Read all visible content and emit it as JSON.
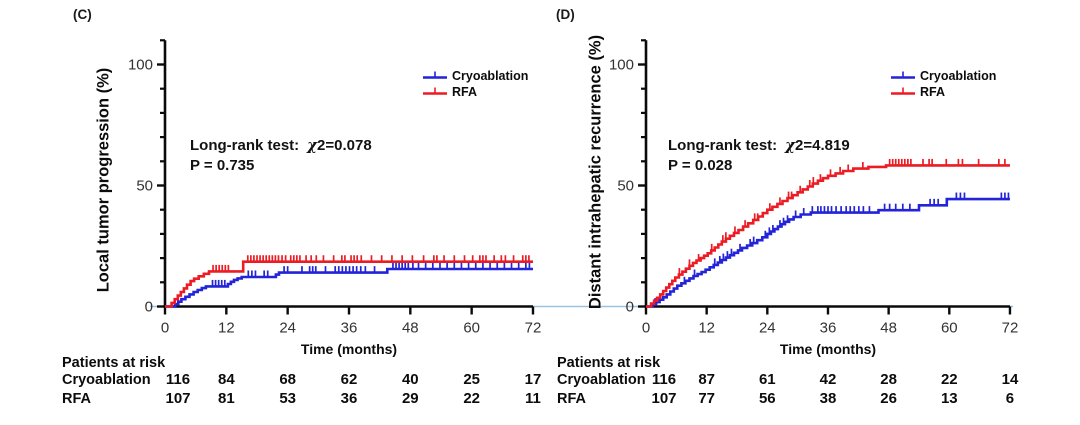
{
  "chart_data": [
    {
      "type": "line",
      "subtype": "cumulative-incidence-step-curves",
      "panel_label": "(C)",
      "ylabel": "Local tumor progression (%)",
      "xlabel": "Time (months)",
      "xlim": [
        0,
        72
      ],
      "ylim": [
        0,
        110
      ],
      "x_ticks": [
        0,
        12,
        24,
        36,
        48,
        60,
        72
      ],
      "y_ticks_major": [
        0,
        50,
        100
      ],
      "y_ticks_minor": [
        10,
        20,
        30,
        40,
        60,
        70,
        80,
        90,
        110
      ],
      "grid": false,
      "legend_position": "top-right",
      "annotation": {
        "prefix": "Long-rank test:",
        "chi": "χ",
        "chi_rest": "2=0.078",
        "p_line": "P = 0.735"
      },
      "series": [
        {
          "name": "Cryoablation",
          "color": "#2323d7",
          "steps": [
            [
              2,
              1
            ],
            [
              2.6,
              2
            ],
            [
              3.2,
              3
            ],
            [
              4,
              4
            ],
            [
              4.8,
              5
            ],
            [
              5.6,
              6
            ],
            [
              6.4,
              6.8
            ],
            [
              7.2,
              7.6
            ],
            [
              8,
              8.3
            ],
            [
              12.3,
              9.3
            ],
            [
              12.9,
              10.2
            ],
            [
              13.5,
              11
            ],
            [
              14.2,
              11.6
            ],
            [
              15,
              12.2
            ],
            [
              21.7,
              13.2
            ],
            [
              22.3,
              14
            ],
            [
              43.5,
              15.5
            ]
          ],
          "end_value": 15.5,
          "censors": [
            9.3,
            9.9,
            10.5,
            11.1,
            11.7,
            16.3,
            17,
            17.7,
            19.4,
            20.1,
            23.3,
            24,
            26.8,
            28.3,
            28.9,
            29.5,
            31.4,
            33.3,
            34,
            34.7,
            35.4,
            36.1,
            36.8,
            37.5,
            38.3,
            39.2,
            41,
            44.6,
            45.2,
            45.8,
            46.4,
            47,
            47.6,
            48.5,
            49.6,
            51,
            52.4,
            53.8,
            55.2,
            56.6,
            58,
            59.4,
            60.8,
            62.2,
            63.6,
            65,
            66.4,
            67.8,
            69.2,
            70.6,
            71.3
          ]
        },
        {
          "name": "RFA",
          "color": "#ec1c24",
          "steps": [
            [
              1.3,
              1.5
            ],
            [
              1.9,
              3
            ],
            [
              2.5,
              4.5
            ],
            [
              3.1,
              6
            ],
            [
              3.7,
              7.5
            ],
            [
              4.3,
              9
            ],
            [
              5,
              10.5
            ],
            [
              5.7,
              11.5
            ],
            [
              6.6,
              12.5
            ],
            [
              7.6,
              13.5
            ],
            [
              8.6,
              14.5
            ],
            [
              15.3,
              18.5
            ]
          ],
          "end_value": 18.5,
          "censors": [
            9.4,
            10,
            10.6,
            11.2,
            11.8,
            12.4,
            16.2,
            16.8,
            17.4,
            18,
            18.6,
            19.2,
            19.8,
            20.4,
            21,
            21.6,
            22.2,
            22.9,
            23.6,
            24.6,
            25.2,
            25.8,
            26.4,
            27.6,
            28.6,
            29.6,
            31,
            33,
            34.6,
            35.2,
            36.4,
            37,
            37.6,
            38.4,
            40.4,
            42.4,
            44.4,
            46.4,
            48.4,
            50.6,
            52.6,
            53.2,
            54.6,
            56.6,
            58.6,
            60.2,
            61.6,
            62.2,
            62.8,
            64.4,
            65.8,
            66.6,
            68.2,
            70,
            70.6,
            71.2
          ]
        }
      ],
      "risk_table": {
        "title": "Patients at risk",
        "rows": [
          {
            "name": "Cryoablation",
            "counts": [
              116,
              84,
              68,
              62,
              40,
              25,
              17
            ]
          },
          {
            "name": "RFA",
            "counts": [
              107,
              81,
              53,
              36,
              29,
              22,
              11
            ]
          }
        ]
      }
    },
    {
      "type": "line",
      "subtype": "cumulative-incidence-step-curves",
      "panel_label": "(D)",
      "ylabel": "Distant intrahepatic recurrence (%)",
      "xlabel": "Time (months)",
      "xlim": [
        0,
        72
      ],
      "ylim": [
        0,
        110
      ],
      "x_ticks": [
        0,
        12,
        24,
        36,
        48,
        60,
        72
      ],
      "y_ticks_major": [
        0,
        50,
        100
      ],
      "y_ticks_minor": [
        10,
        20,
        30,
        40,
        60,
        70,
        80,
        90,
        110
      ],
      "grid": false,
      "legend_position": "top-right",
      "annotation": {
        "prefix": "Long-rank test:",
        "chi": "χ",
        "chi_rest": "2=4.819",
        "p_line": "P = 0.028"
      },
      "series": [
        {
          "name": "Cryoablation",
          "color": "#2323d7",
          "steps": [
            [
              1.3,
              0.8
            ],
            [
              2,
              1.8
            ],
            [
              2.7,
              2.8
            ],
            [
              3.4,
              3.8
            ],
            [
              4.1,
              5
            ],
            [
              4.8,
              6.2
            ],
            [
              5.5,
              7.4
            ],
            [
              6.2,
              8.6
            ],
            [
              7,
              9.6
            ],
            [
              7.8,
              10.6
            ],
            [
              8.6,
              11.6
            ],
            [
              9.4,
              12.6
            ],
            [
              10.2,
              13.4
            ],
            [
              11,
              14.2
            ],
            [
              11.8,
              15.2
            ],
            [
              12.6,
              16.2
            ],
            [
              13.4,
              17.2
            ],
            [
              14.2,
              18.2
            ],
            [
              15,
              19.2
            ],
            [
              15.8,
              20.2
            ],
            [
              16.6,
              21.2
            ],
            [
              17.4,
              22.2
            ],
            [
              18.2,
              23.2
            ],
            [
              19,
              24.2
            ],
            [
              20,
              25.2
            ],
            [
              21,
              26.2
            ],
            [
              22,
              27.4
            ],
            [
              23,
              28.6
            ],
            [
              24,
              30
            ],
            [
              24.7,
              31
            ],
            [
              25.4,
              32
            ],
            [
              26.1,
              33
            ],
            [
              26.8,
              34
            ],
            [
              27.5,
              35
            ],
            [
              28.3,
              36
            ],
            [
              29.2,
              37
            ],
            [
              30.6,
              38
            ],
            [
              32.6,
              38.8
            ],
            [
              46,
              39.8
            ],
            [
              54,
              41.8
            ],
            [
              59.5,
              44.4
            ]
          ],
          "end_value": 44.4,
          "censors": [
            1.8,
            7.6,
            9.6,
            13.6,
            14.6,
            15.3,
            16.1,
            16.9,
            18.6,
            20.6,
            21.3,
            23.6,
            24.4,
            25.1,
            26.5,
            27.2,
            28,
            29.6,
            31.2,
            32.9,
            34,
            34.6,
            35.3,
            36,
            36.7,
            37.6,
            38.6,
            39.6,
            40.4,
            41.2,
            42.1,
            43,
            44.2,
            47.2,
            48.2,
            49.4,
            50.8,
            52.2,
            56.2,
            57,
            57.8,
            61.4,
            62.2,
            63,
            70.3,
            71,
            71.7
          ]
        },
        {
          "name": "RFA",
          "color": "#ec1c24",
          "steps": [
            [
              1,
              1.2
            ],
            [
              1.6,
              2.4
            ],
            [
              2.2,
              3.6
            ],
            [
              2.8,
              5
            ],
            [
              3.4,
              6.4
            ],
            [
              4,
              7.8
            ],
            [
              4.6,
              9.2
            ],
            [
              5.2,
              10.6
            ],
            [
              5.8,
              12
            ],
            [
              6.5,
              13.2
            ],
            [
              7.2,
              14.4
            ],
            [
              7.9,
              15.6
            ],
            [
              8.6,
              16.8
            ],
            [
              9.3,
              18
            ],
            [
              10,
              19
            ],
            [
              10.8,
              20
            ],
            [
              11.5,
              21
            ],
            [
              12.2,
              22
            ],
            [
              12.9,
              23.2
            ],
            [
              13.6,
              24.4
            ],
            [
              14.3,
              25.6
            ],
            [
              15,
              26.8
            ],
            [
              15.8,
              28
            ],
            [
              16.6,
              29.2
            ],
            [
              17.4,
              30.4
            ],
            [
              18.3,
              31.6
            ],
            [
              19.2,
              33
            ],
            [
              20.2,
              34.4
            ],
            [
              21.2,
              35.8
            ],
            [
              22.2,
              37.2
            ],
            [
              23.1,
              38.6
            ],
            [
              24,
              40
            ],
            [
              25,
              41.2
            ],
            [
              26,
              42.4
            ],
            [
              27,
              43.6
            ],
            [
              28,
              44.8
            ],
            [
              29,
              46
            ],
            [
              30,
              47.2
            ],
            [
              31,
              48.4
            ],
            [
              32,
              49.6
            ],
            [
              33,
              50.8
            ],
            [
              34,
              52
            ],
            [
              35,
              53
            ],
            [
              36,
              54
            ],
            [
              37.5,
              55
            ],
            [
              39,
              56
            ],
            [
              41,
              57
            ],
            [
              44,
              57.7
            ],
            [
              47.5,
              58.3
            ]
          ],
          "end_value": 58.3,
          "censors": [
            6.6,
            8.6,
            10.4,
            13,
            15.2,
            15.8,
            17.6,
            19.6,
            21.5,
            22.1,
            24.5,
            26.5,
            28.2,
            28.8,
            30.5,
            32.4,
            33.1,
            34.5,
            36.5,
            38.4,
            40,
            42.9,
            48.2,
            48.8,
            49.4,
            50,
            50.6,
            51.2,
            51.8,
            52.4,
            54.8,
            56,
            56.6,
            59.4,
            61.8,
            62.6,
            65.8,
            69.8,
            71
          ]
        }
      ],
      "risk_table": {
        "title": "Patients at risk",
        "rows": [
          {
            "name": "Cryoablation",
            "counts": [
              116,
              87,
              61,
              42,
              28,
              22,
              14
            ]
          },
          {
            "name": "RFA",
            "counts": [
              107,
              77,
              56,
              38,
              26,
              13,
              6
            ]
          }
        ]
      }
    }
  ],
  "style_colors": {
    "axis": "#0a0a0a",
    "tick_label": "#333333",
    "zero_reference_line": "#9cc2e0"
  }
}
